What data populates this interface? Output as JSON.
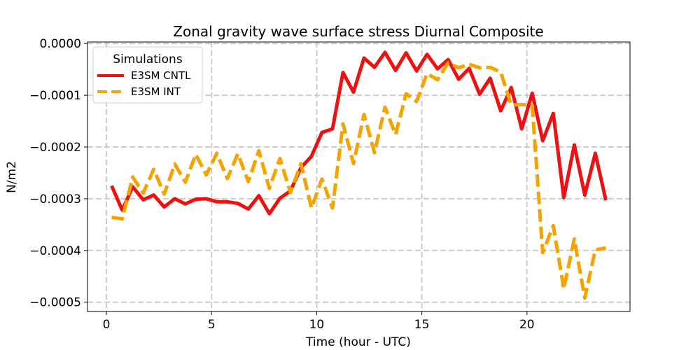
{
  "chart_data": {
    "type": "line",
    "title": "Zonal gravity wave surface stress Diurnal Composite",
    "xlabel": "Time (hour - UTC)",
    "ylabel": "N/m2",
    "xlim": [
      -0.9,
      24.9
    ],
    "ylim": [
      -0.000518,
      3e-06
    ],
    "xticks": [
      0,
      5,
      10,
      15,
      20
    ],
    "xtick_labels": [
      "0",
      "5",
      "10",
      "15",
      "20"
    ],
    "yticks": [
      0,
      -0.0001,
      -0.0002,
      -0.0003,
      -0.0004,
      -0.0005
    ],
    "ytick_labels": [
      "0.0000",
      "−0.0001",
      "−0.0002",
      "−0.0003",
      "−0.0004",
      "−0.0005"
    ],
    "grid": true,
    "legend": {
      "title": "Simulations",
      "position": "top-left"
    },
    "x": [
      0.25,
      0.75,
      1.25,
      1.75,
      2.25,
      2.75,
      3.25,
      3.75,
      4.25,
      4.75,
      5.25,
      5.75,
      6.25,
      6.75,
      7.25,
      7.75,
      8.25,
      8.75,
      9.25,
      9.75,
      10.25,
      10.75,
      11.25,
      11.75,
      12.25,
      12.75,
      13.25,
      13.75,
      14.25,
      14.75,
      15.25,
      15.75,
      16.25,
      16.75,
      17.25,
      17.75,
      18.25,
      18.75,
      19.25,
      19.75,
      20.25,
      20.75,
      21.25,
      21.75,
      22.25,
      22.75,
      23.25,
      23.75
    ],
    "series": [
      {
        "name": "E3SM CNTL",
        "color": "#ee1111",
        "style": "solid",
        "values": [
          -0.000275,
          -0.000322,
          -0.000277,
          -0.000302,
          -0.000293,
          -0.000316,
          -0.0003,
          -0.00031,
          -0.000301,
          -0.0003,
          -0.000306,
          -0.000306,
          -0.000309,
          -0.00032,
          -0.000294,
          -0.000329,
          -0.000299,
          -0.000285,
          -0.00024,
          -0.000218,
          -0.000172,
          -0.000165,
          -5.6e-05,
          -9.4e-05,
          -2.8e-05,
          -4.6e-05,
          -1.7e-05,
          -5.2e-05,
          -1.8e-05,
          -5.3e-05,
          -2.1e-05,
          -4.9e-05,
          -3.1e-05,
          -6.9e-05,
          -4.8e-05,
          -9.8e-05,
          -6.7e-05,
          -0.00013,
          -8.5e-05,
          -0.000165,
          -9.6e-05,
          -0.000188,
          -0.000135,
          -0.000298,
          -0.000196,
          -0.000293,
          -0.000212,
          -0.000303
        ]
      },
      {
        "name": "E3SM INT",
        "color": "#f5a300",
        "style": "dashed",
        "values": [
          -0.000336,
          -0.000339,
          -0.000258,
          -0.000289,
          -0.000243,
          -0.000291,
          -0.000233,
          -0.000268,
          -0.000214,
          -0.000254,
          -0.000212,
          -0.000261,
          -0.000213,
          -0.000267,
          -0.000207,
          -0.00028,
          -0.000222,
          -0.000288,
          -0.000232,
          -0.000318,
          -0.000262,
          -0.000318,
          -0.000155,
          -0.000232,
          -0.000137,
          -0.000211,
          -0.000123,
          -0.000176,
          -9.7e-05,
          -0.000112,
          -5.8e-05,
          -7e-05,
          -3.7e-05,
          -4.7e-05,
          -4e-05,
          -4.7e-05,
          -4.6e-05,
          -5.5e-05,
          -0.000119,
          -0.000118,
          -0.00012,
          -0.000404,
          -0.000352,
          -0.000474,
          -0.000378,
          -0.000492,
          -0.000399,
          -0.000395
        ]
      }
    ]
  }
}
